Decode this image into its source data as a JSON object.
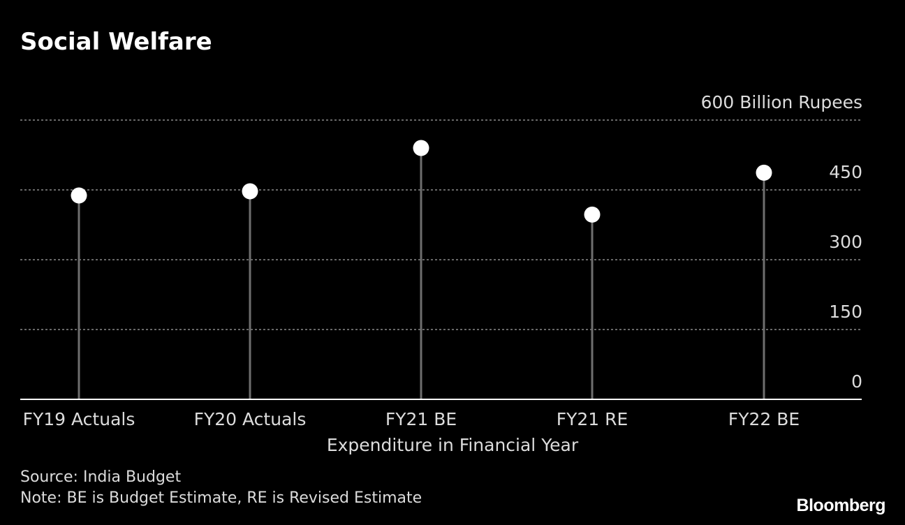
{
  "title": "Social Welfare",
  "footer": {
    "source": "Source: India Budget",
    "note": "Note: BE is Budget Estimate, RE is Revised Estimate",
    "brand": "Bloomberg"
  },
  "colors": {
    "background": "#000000",
    "stem": "#6e6e6e",
    "marker": "#ffffff",
    "grid": "#8a8a8a",
    "text": "#dcdcdc"
  },
  "chart_data": {
    "type": "lollipop",
    "categories": [
      "FY19 Actuals",
      "FY20 Actuals",
      "FY21 BE",
      "FY21 RE",
      "FY22 BE"
    ],
    "values": [
      438,
      447,
      540,
      397,
      487
    ],
    "ylim": [
      0,
      600
    ],
    "y_ticks": [
      0,
      150,
      300,
      450,
      600
    ],
    "y_tick_labels": [
      "0",
      "150",
      "300",
      "450",
      "600 Billion Rupees"
    ],
    "xlabel": "Expenditure in Financial Year",
    "grid": true
  }
}
